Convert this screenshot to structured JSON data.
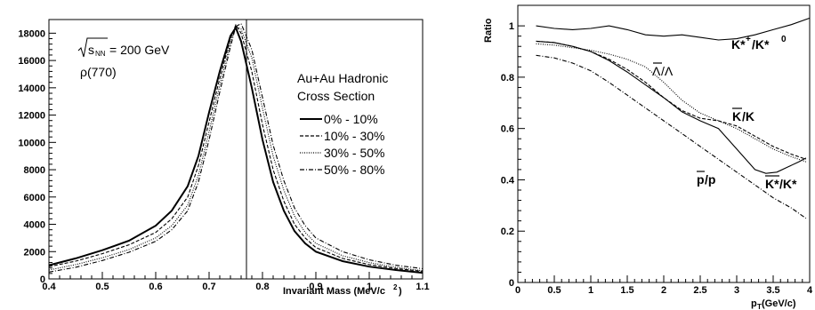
{
  "chart_data": [
    {
      "type": "line",
      "xlabel": "Invariant Mass (MeV/c",
      "xlabel_superscript": "2",
      "xlabel_suffix": ")",
      "ylabel": "",
      "xlim": [
        0.4,
        1.1
      ],
      "ylim": [
        0,
        19000
      ],
      "xticks": [
        "0.4",
        "0.5",
        "0.6",
        "0.7",
        "0.8",
        "0.9",
        "1",
        "1.1"
      ],
      "yticks": [
        "0",
        "2000",
        "4000",
        "6000",
        "8000",
        "10000",
        "12000",
        "14000",
        "16000",
        "18000"
      ],
      "annotations": {
        "energy": "√s_NN = 200 GeV",
        "energy_value": "= 200 GeV",
        "energy_symbol": "s",
        "energy_subscript": "NN",
        "resonance": "ρ(770)",
        "legend_title_line1": "Au+Au Hadronic",
        "legend_title_line2": "Cross Section"
      },
      "reference_line_x": 0.77,
      "legend_position": "right",
      "series": [
        {
          "name": "0% - 10%",
          "style": "solid",
          "x": [
            0.4,
            0.45,
            0.5,
            0.55,
            0.6,
            0.63,
            0.66,
            0.68,
            0.7,
            0.72,
            0.74,
            0.75,
            0.76,
            0.78,
            0.8,
            0.82,
            0.84,
            0.86,
            0.88,
            0.9,
            0.95,
            1.0,
            1.05,
            1.1
          ],
          "y": [
            1000,
            1500,
            2100,
            2800,
            3900,
            5000,
            6800,
            9000,
            12200,
            15200,
            17800,
            18400,
            17400,
            14000,
            10200,
            7100,
            5000,
            3500,
            2600,
            2000,
            1300,
            900,
            650,
            450
          ]
        },
        {
          "name": "10% - 30%",
          "style": "dashed",
          "x": [
            0.4,
            0.45,
            0.5,
            0.55,
            0.6,
            0.63,
            0.66,
            0.68,
            0.7,
            0.72,
            0.74,
            0.75,
            0.76,
            0.78,
            0.8,
            0.82,
            0.84,
            0.86,
            0.88,
            0.9,
            0.95,
            1.0,
            1.05,
            1.1
          ],
          "y": [
            900,
            1300,
            1850,
            2500,
            3400,
            4400,
            6000,
            8300,
            11500,
            14700,
            17600,
            18600,
            18000,
            15200,
            11300,
            8000,
            5700,
            4000,
            3000,
            2300,
            1500,
            1050,
            760,
            550
          ]
        },
        {
          "name": "30% - 50%",
          "style": "dotted",
          "x": [
            0.4,
            0.45,
            0.5,
            0.55,
            0.6,
            0.63,
            0.66,
            0.68,
            0.7,
            0.72,
            0.74,
            0.75,
            0.76,
            0.78,
            0.8,
            0.82,
            0.84,
            0.86,
            0.88,
            0.9,
            0.95,
            1.0,
            1.05,
            1.1
          ],
          "y": [
            650,
            1050,
            1550,
            2150,
            3000,
            3900,
            5400,
            7600,
            10800,
            14200,
            17300,
            18500,
            18300,
            16200,
            12500,
            9000,
            6500,
            4600,
            3400,
            2600,
            1700,
            1200,
            850,
            600
          ]
        },
        {
          "name": "50% - 80%",
          "style": "dashdot",
          "x": [
            0.4,
            0.45,
            0.5,
            0.55,
            0.6,
            0.63,
            0.66,
            0.68,
            0.7,
            0.72,
            0.74,
            0.75,
            0.76,
            0.78,
            0.8,
            0.82,
            0.84,
            0.86,
            0.88,
            0.9,
            0.95,
            1.0,
            1.05,
            1.1
          ],
          "y": [
            500,
            850,
            1350,
            1950,
            2750,
            3600,
            5000,
            7100,
            10200,
            13700,
            17000,
            18500,
            18700,
            16800,
            13300,
            9800,
            7200,
            5200,
            3900,
            3000,
            2000,
            1400,
            1000,
            750
          ]
        }
      ]
    },
    {
      "type": "line",
      "xlabel": "p",
      "xlabel_subscript": "T",
      "xlabel_suffix": " (GeV/c)",
      "ylabel": "Ratio",
      "xlim": [
        0,
        4
      ],
      "ylim": [
        0,
        1.08
      ],
      "xticks": [
        "0",
        "0.5",
        "1",
        "1.5",
        "2",
        "2.5",
        "3",
        "3.5",
        "4"
      ],
      "yticks": [
        "0",
        "0.2",
        "0.4",
        "0.6",
        "0.8",
        "1"
      ],
      "series": [
        {
          "name": "K*+/K*0",
          "label_base": "K*",
          "label_sup1": "+",
          "label_mid": "/K*",
          "label_sup2": "0",
          "style": "solid",
          "x": [
            0.25,
            0.5,
            0.75,
            1.0,
            1.25,
            1.5,
            1.75,
            2.0,
            2.25,
            2.5,
            2.75,
            3.0,
            3.25,
            3.5,
            3.75,
            4.0
          ],
          "y": [
            1.0,
            0.99,
            0.985,
            0.99,
            1.0,
            0.985,
            0.965,
            0.96,
            0.965,
            0.955,
            0.945,
            0.95,
            0.965,
            0.985,
            1.005,
            1.03
          ]
        },
        {
          "name": "Λ̄/Λ",
          "label_base": "Λ",
          "label_rest": "/Λ",
          "style": "dotted",
          "x": [
            0.25,
            0.5,
            0.75,
            1.0,
            1.25,
            1.5,
            1.75,
            2.0,
            2.25,
            2.5,
            2.75,
            3.0,
            3.25,
            3.5,
            3.75,
            3.95
          ],
          "y": [
            0.93,
            0.925,
            0.915,
            0.905,
            0.89,
            0.87,
            0.84,
            0.78,
            0.71,
            0.66,
            0.63,
            0.6,
            0.56,
            0.52,
            0.49,
            0.47
          ]
        },
        {
          "name": "K̄/K",
          "label_base": "K",
          "label_rest": "/K",
          "style": "dashed",
          "x": [
            0.25,
            0.5,
            0.75,
            1.0,
            1.25,
            1.5,
            1.75,
            2.0,
            2.25,
            2.5,
            2.75,
            3.0,
            3.25,
            3.5,
            3.75,
            3.95
          ],
          "y": [
            0.94,
            0.935,
            0.92,
            0.9,
            0.87,
            0.83,
            0.78,
            0.72,
            0.67,
            0.64,
            0.63,
            0.61,
            0.57,
            0.53,
            0.5,
            0.48
          ]
        },
        {
          "name": "K̄*/K*",
          "label_base": "K*",
          "label_rest": "/K*",
          "style": "solid",
          "x": [
            0.25,
            0.5,
            0.75,
            1.0,
            1.25,
            1.5,
            1.75,
            2.0,
            2.25,
            2.5,
            2.75,
            3.0,
            3.25,
            3.4,
            3.55,
            3.7,
            3.85,
            3.95
          ],
          "y": [
            0.94,
            0.935,
            0.92,
            0.9,
            0.865,
            0.82,
            0.77,
            0.72,
            0.665,
            0.63,
            0.6,
            0.52,
            0.44,
            0.425,
            0.43,
            0.45,
            0.47,
            0.485
          ]
        },
        {
          "name": "p̄/p",
          "label_base": "p",
          "label_rest": "/p",
          "style": "dashdot",
          "x": [
            0.25,
            0.5,
            0.75,
            1.0,
            1.25,
            1.5,
            1.75,
            2.0,
            2.25,
            2.5,
            2.75,
            3.0,
            3.25,
            3.5,
            3.75,
            3.95
          ],
          "y": [
            0.885,
            0.875,
            0.855,
            0.825,
            0.78,
            0.73,
            0.68,
            0.63,
            0.58,
            0.53,
            0.48,
            0.43,
            0.38,
            0.33,
            0.29,
            0.25
          ]
        }
      ]
    }
  ]
}
